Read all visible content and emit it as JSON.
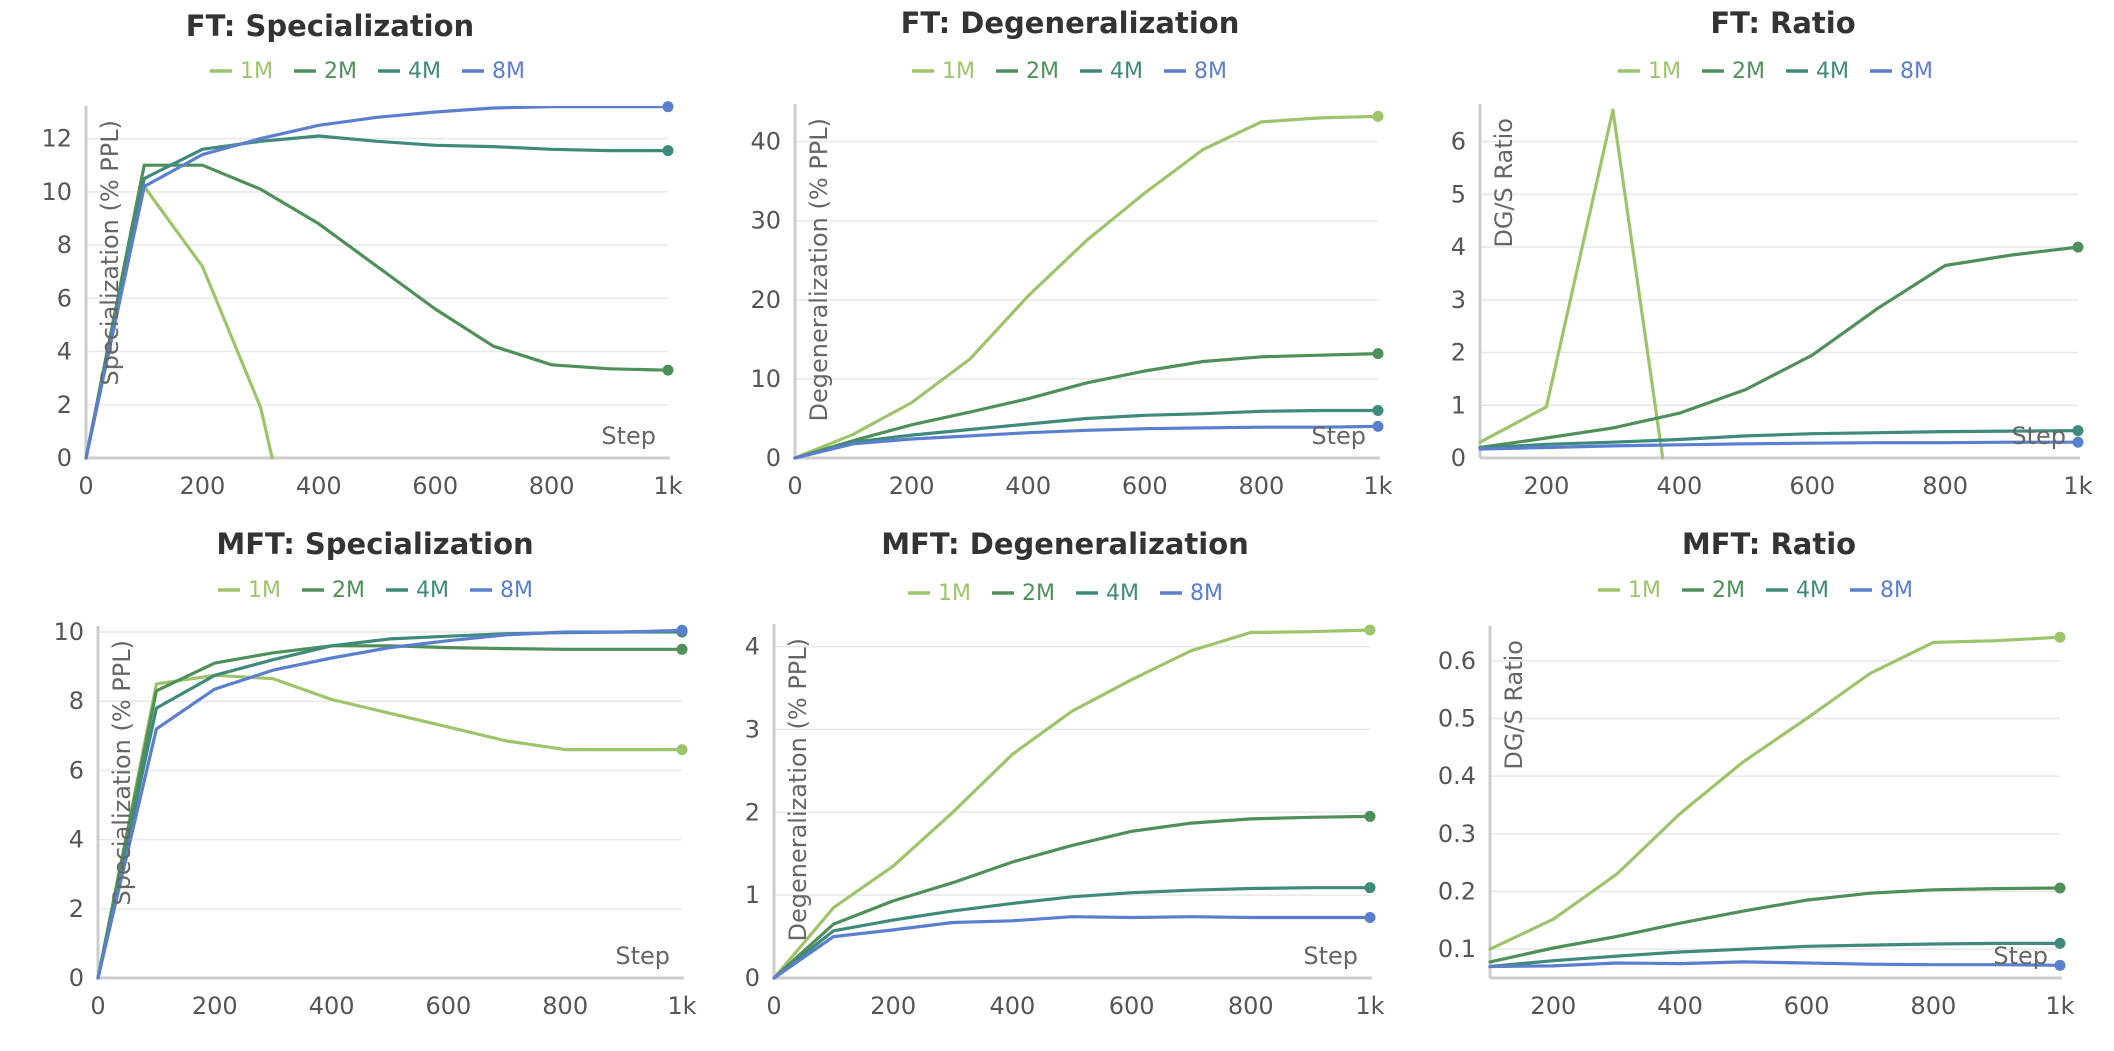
{
  "colors": {
    "1M": "#9dc46a",
    "2M": "#4f8f59",
    "4M": "#3f8a7b",
    "8M": "#5b7fcf"
  },
  "chart_data": [
    {
      "type": "line",
      "title": "FT: Specialization",
      "xlabel": "Step",
      "ylabel": "Specialization (% PPL)",
      "xlim": [
        0,
        1000
      ],
      "ylim": [
        0,
        13
      ],
      "xticks": [
        0,
        200,
        400,
        600,
        800,
        1000
      ],
      "xtick_labels": [
        "0",
        "200",
        "400",
        "600",
        "800",
        "1k"
      ],
      "yticks": [
        0,
        2,
        4,
        6,
        8,
        10,
        12
      ],
      "ytick_labels": [
        "0",
        "2",
        "4",
        "6",
        "8",
        "10",
        "12"
      ],
      "series": [
        {
          "name": "1M",
          "x": [
            0,
            100,
            200,
            300,
            320
          ],
          "y": [
            0,
            10.2,
            7.2,
            1.9,
            0
          ]
        },
        {
          "name": "2M",
          "x": [
            0,
            100,
            200,
            300,
            400,
            500,
            600,
            700,
            800,
            900,
            1000
          ],
          "y": [
            0,
            11.0,
            11.0,
            10.1,
            8.8,
            7.2,
            5.6,
            4.2,
            3.5,
            3.35,
            3.3
          ]
        },
        {
          "name": "4M",
          "x": [
            0,
            100,
            200,
            300,
            400,
            500,
            600,
            700,
            800,
            900,
            1000
          ],
          "y": [
            0,
            10.5,
            11.6,
            11.9,
            12.1,
            11.9,
            11.75,
            11.7,
            11.6,
            11.55,
            11.55
          ]
        },
        {
          "name": "8M",
          "x": [
            0,
            100,
            200,
            300,
            400,
            500,
            600,
            700,
            800,
            900,
            1000
          ],
          "y": [
            0,
            10.2,
            11.4,
            12.0,
            12.5,
            12.8,
            13.0,
            13.15,
            13.2,
            13.2,
            13.2
          ]
        }
      ]
    },
    {
      "type": "line",
      "title": "FT: Degeneralization",
      "xlabel": "Step",
      "ylabel": "Degeneralization (% PPL)",
      "xlim": [
        0,
        1000
      ],
      "ylim": [
        0,
        44
      ],
      "xticks": [
        0,
        200,
        400,
        600,
        800,
        1000
      ],
      "xtick_labels": [
        "0",
        "200",
        "400",
        "600",
        "800",
        "1k"
      ],
      "yticks": [
        0,
        10,
        20,
        30,
        40
      ],
      "ytick_labels": [
        "0",
        "10",
        "20",
        "30",
        "40"
      ],
      "series": [
        {
          "name": "1M",
          "x": [
            0,
            100,
            200,
            300,
            400,
            500,
            600,
            700,
            800,
            900,
            1000
          ],
          "y": [
            0,
            3.0,
            7.0,
            12.5,
            20.5,
            27.5,
            33.5,
            39.0,
            42.5,
            43.0,
            43.2
          ]
        },
        {
          "name": "2M",
          "x": [
            0,
            100,
            200,
            300,
            400,
            500,
            600,
            700,
            800,
            900,
            1000
          ],
          "y": [
            0,
            2.2,
            4.2,
            5.8,
            7.5,
            9.5,
            11.0,
            12.2,
            12.8,
            13.0,
            13.2
          ]
        },
        {
          "name": "4M",
          "x": [
            0,
            100,
            200,
            300,
            400,
            500,
            600,
            700,
            800,
            900,
            1000
          ],
          "y": [
            0,
            2.0,
            2.9,
            3.6,
            4.3,
            5.0,
            5.4,
            5.6,
            5.9,
            6.0,
            6.0
          ]
        },
        {
          "name": "8M",
          "x": [
            0,
            100,
            200,
            300,
            400,
            500,
            600,
            700,
            800,
            900,
            1000
          ],
          "y": [
            0,
            1.8,
            2.4,
            2.8,
            3.2,
            3.5,
            3.7,
            3.8,
            3.9,
            3.9,
            4.0
          ]
        }
      ]
    },
    {
      "type": "line",
      "title": "FT: Ratio",
      "xlabel": "Step",
      "ylabel": "DG/S Ratio",
      "xlim": [
        100,
        1000
      ],
      "ylim": [
        0,
        6.6
      ],
      "xticks": [
        200,
        400,
        600,
        800,
        1000
      ],
      "xtick_labels": [
        "200",
        "400",
        "600",
        "800",
        "1k"
      ],
      "yticks": [
        0,
        1,
        2,
        3,
        4,
        5,
        6
      ],
      "ytick_labels": [
        "0",
        "1",
        "2",
        "3",
        "4",
        "5",
        "6"
      ],
      "series": [
        {
          "name": "1M",
          "x": [
            100,
            200,
            300,
            375
          ],
          "y": [
            0.3,
            0.97,
            6.6,
            0
          ]
        },
        {
          "name": "2M",
          "x": [
            100,
            200,
            300,
            400,
            500,
            600,
            700,
            800,
            900,
            1000
          ],
          "y": [
            0.2,
            0.38,
            0.57,
            0.85,
            1.3,
            1.95,
            2.85,
            3.65,
            3.85,
            4.0
          ]
        },
        {
          "name": "4M",
          "x": [
            100,
            200,
            300,
            400,
            500,
            600,
            700,
            800,
            900,
            1000
          ],
          "y": [
            0.19,
            0.26,
            0.3,
            0.35,
            0.42,
            0.46,
            0.48,
            0.5,
            0.51,
            0.52
          ]
        },
        {
          "name": "8M",
          "x": [
            100,
            200,
            300,
            400,
            500,
            600,
            700,
            800,
            900,
            1000
          ],
          "y": [
            0.17,
            0.2,
            0.23,
            0.25,
            0.27,
            0.28,
            0.29,
            0.29,
            0.3,
            0.3
          ]
        }
      ]
    },
    {
      "type": "line",
      "title": "MFT: Specialization",
      "xlabel": "Step",
      "ylabel": "Specialization (% PPL)",
      "xlim": [
        0,
        1000
      ],
      "ylim": [
        0,
        10
      ],
      "xticks": [
        0,
        200,
        400,
        600,
        800,
        1000
      ],
      "xtick_labels": [
        "0",
        "200",
        "400",
        "600",
        "800",
        "1k"
      ],
      "yticks": [
        0,
        2,
        4,
        6,
        8,
        10
      ],
      "ytick_labels": [
        "0",
        "2",
        "4",
        "6",
        "8",
        "10"
      ],
      "series": [
        {
          "name": "1M",
          "x": [
            0,
            100,
            200,
            300,
            400,
            500,
            600,
            700,
            800,
            900,
            1000
          ],
          "y": [
            0,
            8.5,
            8.75,
            8.65,
            8.05,
            7.65,
            7.25,
            6.85,
            6.6,
            6.6,
            6.6
          ]
        },
        {
          "name": "2M",
          "x": [
            0,
            100,
            200,
            300,
            400,
            500,
            600,
            700,
            800,
            900,
            1000
          ],
          "y": [
            0,
            8.3,
            9.1,
            9.4,
            9.6,
            9.6,
            9.55,
            9.52,
            9.5,
            9.5,
            9.5
          ]
        },
        {
          "name": "4M",
          "x": [
            0,
            100,
            200,
            300,
            400,
            500,
            600,
            700,
            800,
            900,
            1000
          ],
          "y": [
            0,
            7.8,
            8.75,
            9.2,
            9.6,
            9.8,
            9.88,
            9.95,
            9.98,
            10.0,
            10.0
          ]
        },
        {
          "name": "8M",
          "x": [
            0,
            100,
            200,
            300,
            400,
            500,
            600,
            700,
            800,
            900,
            1000
          ],
          "y": [
            0,
            7.2,
            8.35,
            8.9,
            9.25,
            9.55,
            9.75,
            9.92,
            10.0,
            10.0,
            10.05
          ]
        }
      ]
    },
    {
      "type": "line",
      "title": "MFT: Degeneralization",
      "xlabel": "Step",
      "ylabel": "Degeneralization (% PPL)",
      "xlim": [
        0,
        1000
      ],
      "ylim": [
        0,
        4.2
      ],
      "xticks": [
        0,
        200,
        400,
        600,
        800,
        1000
      ],
      "xtick_labels": [
        "0",
        "200",
        "400",
        "600",
        "800",
        "1k"
      ],
      "yticks": [
        0,
        1,
        2,
        3,
        4
      ],
      "ytick_labels": [
        "0",
        "1",
        "2",
        "3",
        "4"
      ],
      "series": [
        {
          "name": "1M",
          "x": [
            0,
            100,
            200,
            300,
            400,
            500,
            600,
            700,
            800,
            900,
            1000
          ],
          "y": [
            0,
            0.85,
            1.35,
            2.0,
            2.7,
            3.22,
            3.6,
            3.95,
            4.17,
            4.18,
            4.2
          ]
        },
        {
          "name": "2M",
          "x": [
            0,
            100,
            200,
            300,
            400,
            500,
            600,
            700,
            800,
            900,
            1000
          ],
          "y": [
            0,
            0.65,
            0.93,
            1.15,
            1.4,
            1.6,
            1.77,
            1.87,
            1.92,
            1.94,
            1.95
          ]
        },
        {
          "name": "4M",
          "x": [
            0,
            100,
            200,
            300,
            400,
            500,
            600,
            700,
            800,
            900,
            1000
          ],
          "y": [
            0,
            0.57,
            0.7,
            0.81,
            0.9,
            0.98,
            1.03,
            1.06,
            1.08,
            1.09,
            1.09
          ]
        },
        {
          "name": "8M",
          "x": [
            0,
            100,
            200,
            300,
            400,
            500,
            600,
            700,
            800,
            900,
            1000
          ],
          "y": [
            0,
            0.5,
            0.58,
            0.67,
            0.69,
            0.74,
            0.73,
            0.74,
            0.73,
            0.73,
            0.73
          ]
        }
      ]
    },
    {
      "type": "line",
      "title": "MFT: Ratio",
      "xlabel": "Step",
      "ylabel": "DG/S Ratio",
      "xlim": [
        100,
        1000
      ],
      "ylim": [
        0.05,
        0.65
      ],
      "xticks": [
        200,
        400,
        600,
        800,
        1000
      ],
      "xtick_labels": [
        "200",
        "400",
        "600",
        "800",
        "1k"
      ],
      "yticks": [
        0.1,
        0.2,
        0.3,
        0.4,
        0.5,
        0.6
      ],
      "ytick_labels": [
        "0.1",
        "0.2",
        "0.3",
        "0.4",
        "0.5",
        "0.6"
      ],
      "series": [
        {
          "name": "1M",
          "x": [
            100,
            200,
            300,
            400,
            500,
            600,
            700,
            800,
            900,
            1000
          ],
          "y": [
            0.1,
            0.152,
            0.23,
            0.335,
            0.425,
            0.5,
            0.578,
            0.632,
            0.635,
            0.641
          ]
        },
        {
          "name": "2M",
          "x": [
            100,
            200,
            300,
            400,
            500,
            600,
            700,
            800,
            900,
            1000
          ],
          "y": [
            0.078,
            0.102,
            0.122,
            0.145,
            0.166,
            0.185,
            0.197,
            0.203,
            0.205,
            0.206
          ]
        },
        {
          "name": "4M",
          "x": [
            100,
            200,
            300,
            400,
            500,
            600,
            700,
            800,
            900,
            1000
          ],
          "y": [
            0.07,
            0.08,
            0.088,
            0.095,
            0.1,
            0.105,
            0.107,
            0.109,
            0.11,
            0.11
          ]
        },
        {
          "name": "8M",
          "x": [
            100,
            200,
            300,
            400,
            500,
            600,
            700,
            800,
            900,
            1000
          ],
          "y": [
            0.07,
            0.071,
            0.076,
            0.075,
            0.078,
            0.076,
            0.074,
            0.073,
            0.073,
            0.072
          ]
        }
      ]
    }
  ]
}
